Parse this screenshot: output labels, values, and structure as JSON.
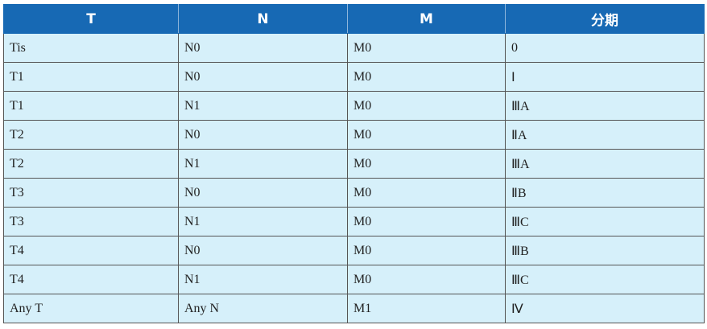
{
  "table": {
    "header": [
      "T",
      "N",
      "M",
      "分期"
    ],
    "rows": [
      [
        "Tis",
        "N0",
        "M0",
        "0"
      ],
      [
        "T1",
        "N0",
        "M0",
        "Ⅰ"
      ],
      [
        "T1",
        "N1",
        "M0",
        "ⅢA"
      ],
      [
        "T2",
        "N0",
        "M0",
        "ⅡA"
      ],
      [
        "T2",
        "N1",
        "M0",
        "ⅢA"
      ],
      [
        "T3",
        "N0",
        "M0",
        "ⅡB"
      ],
      [
        "T3",
        "N1",
        "M0",
        "ⅢC"
      ],
      [
        "T4",
        "N0",
        "M0",
        "ⅢB"
      ],
      [
        "T4",
        "N1",
        "M0",
        "ⅢC"
      ],
      [
        "Any T",
        "Any N",
        "M1",
        "Ⅳ"
      ]
    ]
  }
}
